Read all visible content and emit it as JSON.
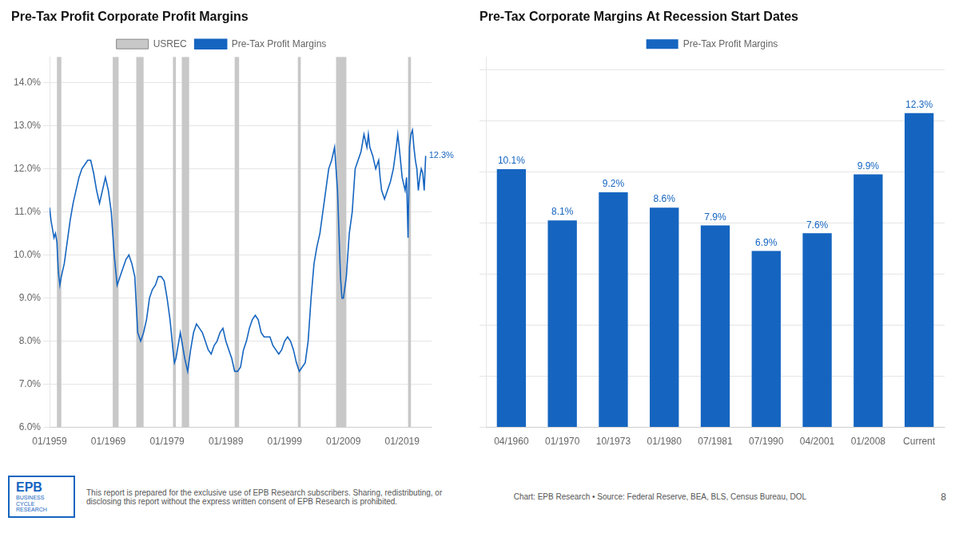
{
  "chart_data": [
    {
      "type": "line",
      "title": "Pre-Tax Profit Corporate Profit Margins",
      "x": [
        1959.0,
        1959.25,
        1959.5,
        1959.75,
        1960.0,
        1960.25,
        1960.5,
        1960.75,
        1961.0,
        1961.5,
        1962.0,
        1962.5,
        1963.0,
        1963.5,
        1964.0,
        1964.5,
        1965.0,
        1965.5,
        1966.0,
        1966.5,
        1967.0,
        1967.5,
        1968.0,
        1968.5,
        1969.0,
        1969.5,
        1970.0,
        1970.5,
        1971.0,
        1971.5,
        1972.0,
        1972.5,
        1973.0,
        1973.5,
        1974.0,
        1974.5,
        1975.0,
        1975.5,
        1976.0,
        1976.5,
        1977.0,
        1977.5,
        1978.0,
        1978.5,
        1979.0,
        1979.5,
        1980.0,
        1980.25,
        1980.5,
        1981.0,
        1981.25,
        1981.5,
        1982.0,
        1982.5,
        1983.0,
        1983.5,
        1984.0,
        1984.5,
        1985.0,
        1985.5,
        1986.0,
        1986.5,
        1987.0,
        1987.5,
        1988.0,
        1988.5,
        1989.0,
        1989.5,
        1990.0,
        1990.5,
        1991.0,
        1991.5,
        1992.0,
        1992.5,
        1993.0,
        1993.5,
        1994.0,
        1994.5,
        1995.0,
        1995.5,
        1996.0,
        1996.5,
        1997.0,
        1997.5,
        1998.0,
        1998.5,
        1999.0,
        1999.5,
        2000.0,
        2000.5,
        2001.0,
        2001.5,
        2002.0,
        2002.5,
        2003.0,
        2003.5,
        2004.0,
        2004.5,
        2005.0,
        2005.5,
        2006.0,
        2006.5,
        2007.0,
        2007.5,
        2008.0,
        2008.25,
        2008.5,
        2008.75,
        2009.0,
        2009.5,
        2010.0,
        2010.5,
        2011.0,
        2011.5,
        2012.0,
        2012.5,
        2013.0,
        2013.25,
        2013.5,
        2014.0,
        2014.5,
        2015.0,
        2015.25,
        2015.5,
        2016.0,
        2016.5,
        2017.0,
        2017.5,
        2018.0,
        2018.25,
        2018.5,
        2019.0,
        2019.5,
        2019.75,
        2020.0,
        2020.25,
        2020.5,
        2020.75,
        2021.0,
        2021.25,
        2021.5,
        2021.75,
        2022.0,
        2022.25,
        2022.5,
        2022.75,
        2023.0
      ],
      "xlim": [
        1959,
        2024
      ],
      "xticks": [
        {
          "value": 1959,
          "label": "01/1959"
        },
        {
          "value": 1969,
          "label": "01/1969"
        },
        {
          "value": 1979,
          "label": "01/1979"
        },
        {
          "value": 1989,
          "label": "01/1989"
        },
        {
          "value": 1999,
          "label": "01/1999"
        },
        {
          "value": 2009,
          "label": "01/2009"
        },
        {
          "value": 2019,
          "label": "01/2019"
        }
      ],
      "ylim": [
        6.0,
        14.6
      ],
      "yticks": [
        {
          "value": 6.0,
          "label": "6.0%"
        },
        {
          "value": 7.0,
          "label": "7.0%"
        },
        {
          "value": 8.0,
          "label": "8.0%"
        },
        {
          "value": 9.0,
          "label": "9.0%"
        },
        {
          "value": 10.0,
          "label": "10.0%"
        },
        {
          "value": 11.0,
          "label": "11.0%"
        },
        {
          "value": 12.0,
          "label": "12.0%"
        },
        {
          "value": 13.0,
          "label": "13.0%"
        },
        {
          "value": 14.0,
          "label": "14.0%"
        }
      ],
      "grid": true,
      "legend": "top",
      "series": [
        {
          "name": "USREC",
          "type": "band",
          "color": "#c8c8c8",
          "bands": [
            [
              1960.25,
              1961.0
            ],
            [
              1969.75,
              1970.75
            ],
            [
              1973.75,
              1975.0
            ],
            [
              1980.0,
              1980.5
            ],
            [
              1981.5,
              1982.75
            ],
            [
              1990.5,
              1991.25
            ],
            [
              2001.25,
              2001.75
            ],
            [
              2007.75,
              2009.5
            ],
            [
              2020.0,
              2020.5
            ]
          ]
        },
        {
          "name": "Pre-Tax Profit Margins",
          "type": "line",
          "color": "#1565c0",
          "values": [
            11.1,
            10.8,
            10.6,
            10.4,
            10.5,
            10.3,
            9.6,
            9.3,
            9.5,
            9.8,
            10.3,
            10.8,
            11.2,
            11.5,
            11.8,
            12.0,
            12.1,
            12.2,
            12.2,
            11.9,
            11.5,
            11.2,
            11.5,
            11.8,
            11.5,
            11.0,
            10.0,
            9.3,
            9.5,
            9.7,
            9.9,
            10.0,
            9.8,
            9.5,
            8.2,
            8.0,
            8.2,
            8.5,
            9.0,
            9.2,
            9.3,
            9.5,
            9.5,
            9.4,
            9.0,
            8.5,
            7.8,
            7.5,
            7.6,
            8.0,
            8.2,
            8.0,
            7.6,
            7.3,
            7.8,
            8.2,
            8.4,
            8.3,
            8.2,
            8.0,
            7.8,
            7.7,
            7.9,
            8.0,
            8.2,
            8.3,
            8.0,
            7.8,
            7.6,
            7.3,
            7.3,
            7.4,
            7.8,
            8.0,
            8.3,
            8.5,
            8.6,
            8.5,
            8.2,
            8.1,
            8.1,
            8.1,
            7.9,
            7.8,
            7.7,
            7.8,
            8.0,
            8.1,
            8.0,
            7.8,
            7.5,
            7.3,
            7.4,
            7.5,
            8.0,
            9.0,
            9.8,
            10.2,
            10.5,
            11.0,
            11.5,
            12.0,
            12.2,
            12.5,
            11.5,
            10.5,
            9.5,
            9.0,
            9.0,
            9.5,
            10.5,
            11.0,
            12.0,
            12.2,
            12.4,
            12.8,
            12.5,
            12.8,
            12.5,
            12.3,
            12.0,
            12.2,
            11.8,
            11.5,
            11.3,
            11.5,
            11.7,
            12.0,
            12.5,
            12.8,
            12.5,
            11.8,
            11.5,
            11.8,
            10.4,
            12.5,
            12.8,
            12.9,
            12.5,
            12.2,
            12.0,
            11.5,
            11.8,
            12.0,
            11.9,
            11.5,
            12.3
          ]
        }
      ],
      "annotations": [
        {
          "text": "12.3%",
          "x": 2023.0,
          "y": 12.3
        }
      ]
    },
    {
      "type": "bar",
      "title": "Pre-Tax Corporate Margins At Recession Start Dates",
      "categories": [
        "04/1960",
        "01/1970",
        "10/1973",
        "01/1980",
        "07/1981",
        "07/1990",
        "04/2001",
        "01/2008",
        "Current"
      ],
      "series": [
        {
          "name": "Pre-Tax Profit Margins",
          "color": "#1565c0",
          "values": [
            10.1,
            8.1,
            9.2,
            8.6,
            7.9,
            6.9,
            7.6,
            9.9,
            12.3
          ],
          "value_labels": [
            "10.1%",
            "8.1%",
            "9.2%",
            "8.6%",
            "7.9%",
            "6.9%",
            "7.6%",
            "9.9%",
            "12.3%"
          ]
        }
      ],
      "ylim": [
        0,
        14.5
      ],
      "yticks": [
        0,
        2,
        4,
        6,
        8,
        10,
        12,
        14
      ],
      "grid": true,
      "tick_labels": "x",
      "data_labels": true,
      "legend": "top"
    }
  ],
  "annotations": [
    "EPB",
    "BUSINESS\nCYCLE\nRESEARCH",
    "This report is prepared for the exclusive use of EPB Research subscribers. Sharing, redistributing, or\ndisclosing this report without the express written consent of EPB Research is prohibited.",
    "Chart: EPB Research  •  Source: Federal Reserve, BEA, BLS, Census Bureau, DOL",
    "8"
  ]
}
